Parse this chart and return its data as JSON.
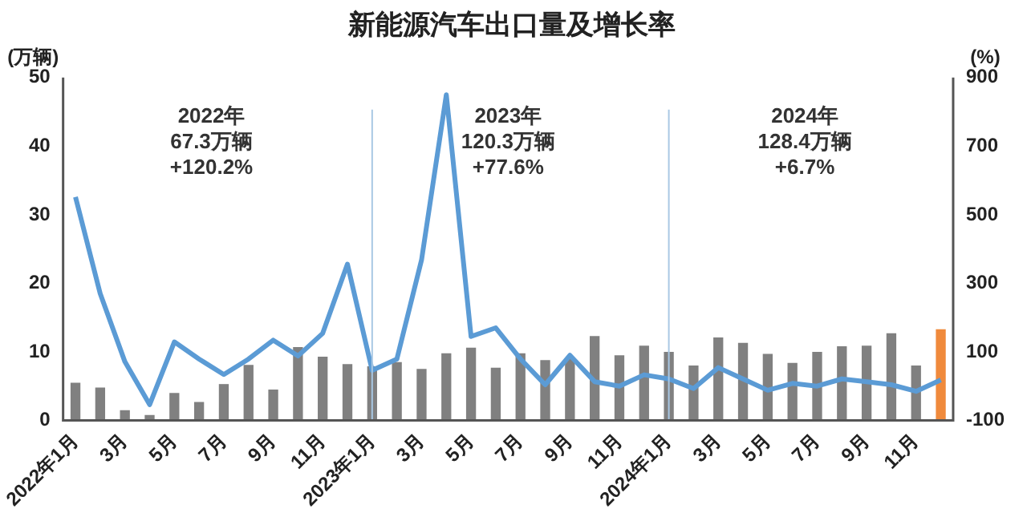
{
  "chart_data": {
    "type": "bar",
    "title": "新能源汽车出口量及增长率",
    "ylabel": "(万辆)",
    "y2label": "(%)",
    "categories": [
      "2022年1月",
      null,
      "3月",
      null,
      "5月",
      null,
      "7月",
      null,
      "9月",
      null,
      "11月",
      null,
      "2023年1月",
      null,
      "3月",
      null,
      "5月",
      null,
      "7月",
      null,
      "9月",
      null,
      "11月",
      null,
      "2024年1月",
      null,
      "3月",
      null,
      "5月",
      null,
      "7月",
      null,
      "9月",
      null,
      "11月",
      null
    ],
    "series": [
      {
        "colors": [
          "#808080",
          "#808080",
          "#808080",
          "#808080",
          "#808080",
          "#808080",
          "#808080",
          "#808080",
          "#808080",
          "#808080",
          "#808080",
          "#808080",
          "#808080",
          "#808080",
          "#808080",
          "#808080",
          "#808080",
          "#808080",
          "#808080",
          "#808080",
          "#808080",
          "#808080",
          "#808080",
          "#808080",
          "#808080",
          "#808080",
          "#808080",
          "#808080",
          "#808080",
          "#808080",
          "#808080",
          "#808080",
          "#808080",
          "#808080",
          "#808080",
          "#f08a3c"
        ],
        "values": [
          5.5,
          4.8,
          1.5,
          0.8,
          4,
          2.7,
          5.3,
          8.1,
          4.5,
          10.7,
          9.3,
          8.2,
          7.9,
          8.5,
          7.5,
          9.8,
          10.6,
          7.7,
          9.8,
          8.8,
          9.1,
          12.3,
          9.5,
          10.9,
          10,
          8,
          12.1,
          11.3,
          9.7,
          8.4,
          10,
          10.8,
          10.9,
          12.7,
          8,
          13.3
        ]
      },
      {
        "type": "line",
        "axis": "y2",
        "color": "#5b9bd5",
        "values": [
          552,
          270,
          71,
          -54,
          129,
          79,
          34,
          79,
          134,
          88,
          154,
          356,
          46,
          79,
          369,
          850,
          145,
          170,
          79,
          4,
          90,
          13,
          0,
          33,
          21,
          -7,
          54,
          21,
          -12,
          8,
          0,
          21,
          13,
          4,
          -15,
          18
        ]
      }
    ],
    "ylim": [
      0,
      50
    ],
    "yticks": [
      0,
      10,
      20,
      30,
      40,
      50
    ],
    "y2lim": [
      -100,
      900
    ],
    "y2ticks": [
      -100,
      100,
      300,
      500,
      700,
      900
    ],
    "ref_lines": [
      {
        "axis": "x",
        "value": "2023年1月",
        "color": "#a9c8e4"
      },
      {
        "axis": "x",
        "value": "2024年1月",
        "color": "#a9c8e4"
      }
    ],
    "annotations": [
      "2022年\n67.3万辆\n+120.2%",
      "2023年\n120.3万辆\n+77.6%",
      "2024年\n128.4万辆\n+6.7%"
    ],
    "grid": false,
    "legend": false,
    "marker": "none",
    "line_style": "solid"
  }
}
